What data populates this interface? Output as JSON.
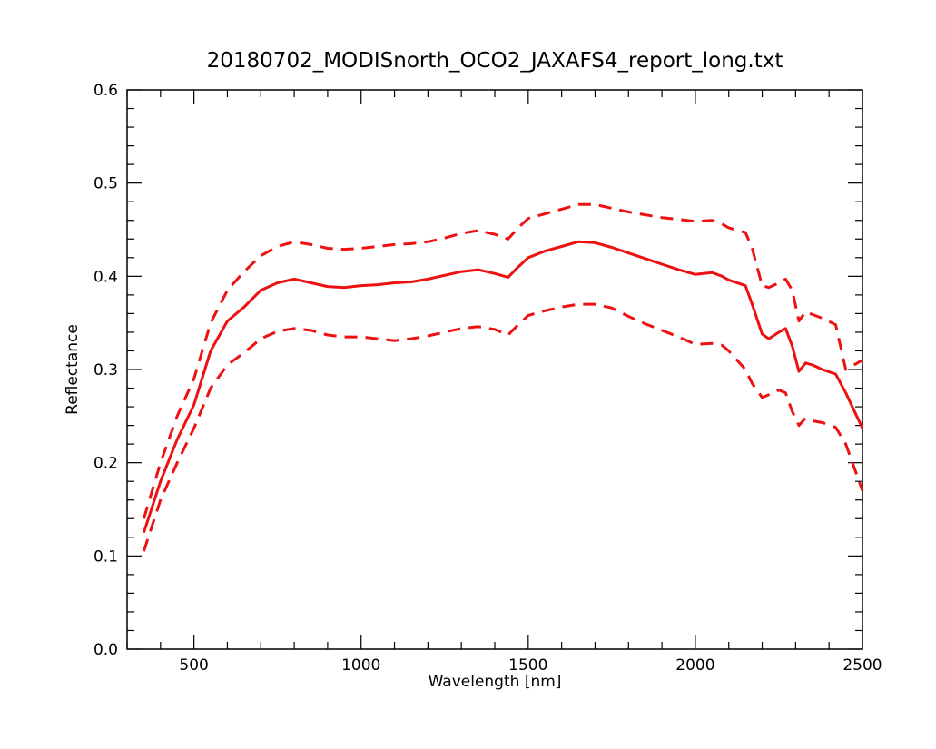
{
  "chart_data": {
    "type": "line",
    "title": "20180702_MODISnorth_OCO2_JAXAFS4_report_long.txt",
    "xlabel": "Wavelength [nm]",
    "ylabel": "Reflectance",
    "xlim": [
      300,
      2500
    ],
    "ylim": [
      0.0,
      0.6
    ],
    "x_ticks": [
      500,
      1000,
      1500,
      2000,
      2500
    ],
    "x_tick_labels": [
      "500",
      "1000",
      "1500",
      "2000",
      "2500"
    ],
    "y_ticks": [
      0.0,
      0.1,
      0.2,
      0.3,
      0.4,
      0.5,
      0.6
    ],
    "y_tick_labels": [
      "0.0",
      "0.1",
      "0.2",
      "0.3",
      "0.4",
      "0.5",
      "0.6"
    ],
    "grid": false,
    "line_color": "#ee1111",
    "series": [
      {
        "style": "solid",
        "x": [
          350,
          400,
          450,
          500,
          550,
          600,
          650,
          700,
          750,
          800,
          850,
          900,
          950,
          1000,
          1050,
          1100,
          1150,
          1200,
          1250,
          1300,
          1350,
          1400,
          1440,
          1470,
          1500,
          1550,
          1600,
          1650,
          1700,
          1750,
          1800,
          1850,
          1900,
          1950,
          2000,
          2050,
          2080,
          2100,
          2150,
          2170,
          2200,
          2220,
          2250,
          2270,
          2290,
          2310,
          2330,
          2350,
          2380,
          2420,
          2450,
          2500
        ],
        "y": [
          0.125,
          0.18,
          0.225,
          0.262,
          0.32,
          0.352,
          0.367,
          0.385,
          0.393,
          0.397,
          0.393,
          0.389,
          0.388,
          0.39,
          0.391,
          0.393,
          0.394,
          0.397,
          0.401,
          0.405,
          0.407,
          0.403,
          0.399,
          0.41,
          0.42,
          0.427,
          0.432,
          0.437,
          0.436,
          0.431,
          0.425,
          0.419,
          0.413,
          0.407,
          0.402,
          0.404,
          0.4,
          0.396,
          0.39,
          0.37,
          0.338,
          0.333,
          0.34,
          0.344,
          0.325,
          0.298,
          0.307,
          0.305,
          0.3,
          0.295,
          0.275,
          0.237
        ]
      },
      {
        "style": "dashed",
        "x": [
          350,
          400,
          450,
          500,
          550,
          600,
          650,
          700,
          750,
          800,
          850,
          900,
          950,
          1000,
          1050,
          1100,
          1150,
          1200,
          1250,
          1300,
          1350,
          1400,
          1440,
          1470,
          1500,
          1550,
          1600,
          1650,
          1700,
          1750,
          1800,
          1850,
          1900,
          1950,
          2000,
          2050,
          2080,
          2100,
          2150,
          2170,
          2200,
          2220,
          2250,
          2270,
          2290,
          2310,
          2330,
          2350,
          2380,
          2420,
          2450,
          2500
        ],
        "y": [
          0.14,
          0.2,
          0.25,
          0.29,
          0.35,
          0.385,
          0.405,
          0.422,
          0.432,
          0.437,
          0.434,
          0.43,
          0.429,
          0.43,
          0.432,
          0.434,
          0.435,
          0.437,
          0.441,
          0.446,
          0.449,
          0.445,
          0.44,
          0.452,
          0.462,
          0.467,
          0.472,
          0.477,
          0.477,
          0.473,
          0.469,
          0.466,
          0.463,
          0.461,
          0.459,
          0.46,
          0.456,
          0.452,
          0.447,
          0.43,
          0.39,
          0.388,
          0.393,
          0.397,
          0.385,
          0.352,
          0.362,
          0.359,
          0.355,
          0.348,
          0.3,
          0.31
        ]
      },
      {
        "style": "dashed",
        "x": [
          350,
          400,
          450,
          500,
          550,
          600,
          650,
          700,
          750,
          800,
          850,
          900,
          950,
          1000,
          1050,
          1100,
          1150,
          1200,
          1250,
          1300,
          1350,
          1400,
          1440,
          1470,
          1500,
          1550,
          1600,
          1650,
          1700,
          1750,
          1800,
          1850,
          1900,
          1950,
          2000,
          2050,
          2080,
          2100,
          2150,
          2170,
          2200,
          2220,
          2250,
          2270,
          2290,
          2310,
          2330,
          2350,
          2380,
          2420,
          2450,
          2500
        ],
        "y": [
          0.105,
          0.16,
          0.2,
          0.237,
          0.28,
          0.305,
          0.318,
          0.333,
          0.341,
          0.344,
          0.342,
          0.337,
          0.335,
          0.335,
          0.333,
          0.331,
          0.333,
          0.336,
          0.34,
          0.344,
          0.346,
          0.343,
          0.337,
          0.348,
          0.358,
          0.363,
          0.367,
          0.37,
          0.37,
          0.366,
          0.357,
          0.349,
          0.342,
          0.335,
          0.327,
          0.328,
          0.326,
          0.32,
          0.3,
          0.285,
          0.27,
          0.273,
          0.278,
          0.275,
          0.255,
          0.24,
          0.248,
          0.245,
          0.243,
          0.238,
          0.22,
          0.17
        ]
      }
    ]
  }
}
